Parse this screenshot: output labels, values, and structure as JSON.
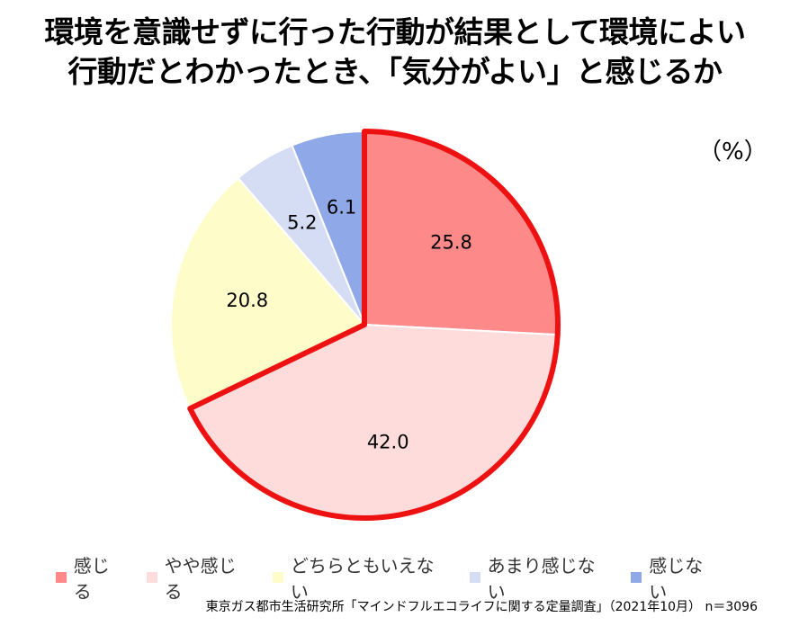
{
  "title_lines": [
    "環境を意識せずに行った行動が結果として環境によい",
    "行動だとわかったとき、「気分がよい」と感じるか"
  ],
  "unit": "（%）",
  "source": "東京ガス都市生活研究所「マインドフルエコライフに関する定量調査」（2021年10月） n＝3096",
  "chart_data": {
    "type": "pie",
    "title": "環境を意識せずに行った行動が結果として環境によい行動だとわかったとき、「気分がよい」と感じるか",
    "unit": "%",
    "start": "12 o'clock",
    "direction": "clockwise",
    "legend_position": "bottom",
    "highlight": [
      "感じる",
      "やや感じる"
    ],
    "highlight_color": "#ee1111",
    "slices": [
      {
        "label": "感じる",
        "value": 25.8,
        "display": "25.8",
        "color": "#fe8989"
      },
      {
        "label": "やや感じる",
        "value": 42.0,
        "display": "42.0",
        "color": "#fedcdc"
      },
      {
        "label": "どちらともいえない",
        "value": 20.8,
        "display": "20.8",
        "color": "#fefdc9"
      },
      {
        "label": "あまり感じない",
        "value": 5.2,
        "display": "5.2",
        "color": "#d5ddf5"
      },
      {
        "label": "感じない",
        "value": 6.1,
        "display": "6.1",
        "color": "#8fa8e8"
      }
    ]
  }
}
